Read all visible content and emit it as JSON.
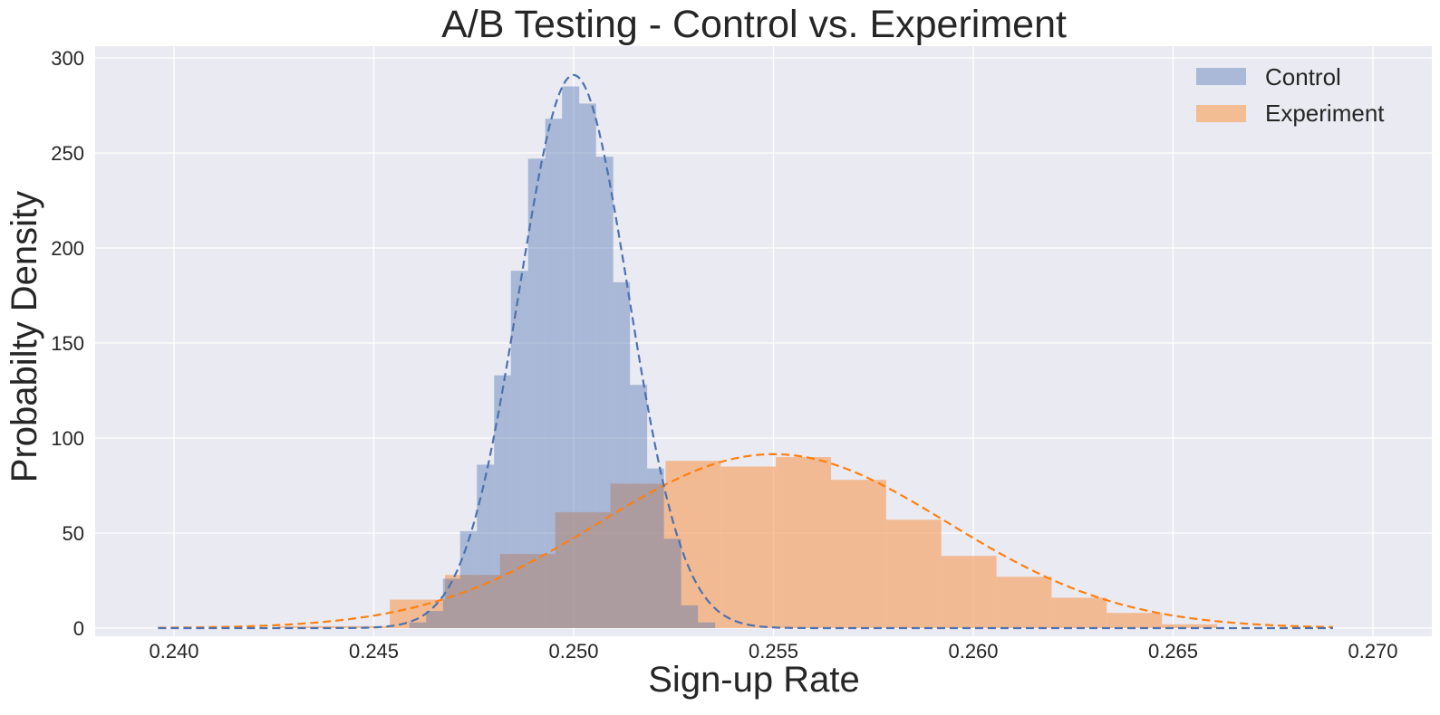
{
  "chart_data": {
    "type": "bar",
    "title": "A/B Testing - Control vs. Experiment",
    "xlabel": "Sign-up Rate",
    "ylabel": "Probabilty Density",
    "xlim": [
      0.2381,
      0.271
    ],
    "ylim": [
      0,
      306
    ],
    "x_ticks": [
      "0.240",
      "0.245",
      "0.250",
      "0.255",
      "0.260",
      "0.265",
      "0.270"
    ],
    "y_ticks": [
      "0",
      "50",
      "100",
      "150",
      "200",
      "250",
      "300"
    ],
    "grid": true,
    "legend_position": "upper right",
    "legend": [
      "Control",
      "Experiment"
    ],
    "colors": {
      "control": "#4c72b0",
      "experiment": "#f28e2b",
      "control_fill": "#a9b9d7",
      "experiment_fill": "#f3bd93",
      "background": "#eaeaf2",
      "grid": "#ffffff"
    },
    "series": [
      {
        "name": "Control",
        "kind": "histogram",
        "bin_edges": [
          0.24589,
          0.24631,
          0.24673,
          0.24716,
          0.24758,
          0.24801,
          0.24843,
          0.24886,
          0.24929,
          0.24971,
          0.25014,
          0.25056,
          0.25099,
          0.25141,
          0.25184,
          0.25226,
          0.25269,
          0.25311,
          0.25354
        ],
        "values": [
          3,
          9,
          26,
          51,
          86,
          133,
          188,
          247,
          268,
          285,
          276,
          248,
          182,
          128,
          84,
          47,
          12,
          3
        ]
      },
      {
        "name": "Experiment",
        "kind": "histogram",
        "bin_edges": [
          0.2454,
          0.24678,
          0.24816,
          0.24954,
          0.25092,
          0.2523,
          0.25368,
          0.25506,
          0.25644,
          0.25782,
          0.2592,
          0.26058,
          0.26196,
          0.26334,
          0.26472,
          0.2661
        ],
        "extra_left_bins": [
          {
            "from": 0.2426,
            "to": 0.2454,
            "value": 1
          }
        ],
        "values": [
          15,
          28,
          39,
          61,
          76,
          88,
          85,
          90,
          78,
          57,
          38,
          27,
          16,
          8,
          2
        ]
      },
      {
        "name": "Control fit",
        "kind": "normal_pdf_dashed",
        "mean": 0.25,
        "std": 0.00137,
        "peak": 291,
        "x_range": [
          0.2396,
          0.269
        ]
      },
      {
        "name": "Experiment fit",
        "kind": "normal_pdf_dashed",
        "mean": 0.255,
        "std": 0.00436,
        "peak": 91.5,
        "x_range": [
          0.2396,
          0.269
        ]
      }
    ]
  }
}
